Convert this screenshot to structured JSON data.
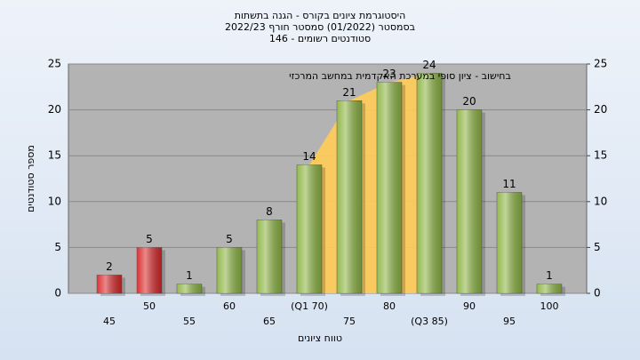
{
  "chart_data": {
    "type": "bar",
    "title": "היסטוגרמת ציונים בקורס - הגנה בתשתות",
    "subtitle": "בסמסטר  (01/2022)  סמסטר חורף  2022/23",
    "subtitle2": "סטודנטים רשומים - 146",
    "annotation": "בחישוב - ציון סופי במערכת האקדמית במחשב המרכזי",
    "x_label": "טווח ציונים",
    "y_label": "מספר סטודנטים",
    "categories": [
      "45",
      "50",
      "55",
      "60",
      "65",
      "(Q1 70)",
      "75",
      "80",
      "(Q3 85)",
      "90",
      "95",
      "100"
    ],
    "values": [
      2,
      5,
      1,
      5,
      8,
      14,
      21,
      23,
      24,
      20,
      11,
      1
    ],
    "colors": [
      "#d8282a",
      "#d8282a",
      "#8db544",
      "#8db544",
      "#8db544",
      "#8db544",
      "#8db544",
      "#8db544",
      "#8db544",
      "#8db544",
      "#8db544",
      "#8db544"
    ],
    "iqr_color": "#ffcc55",
    "ylim": [
      0,
      25
    ],
    "yticks": [
      0,
      5,
      10,
      15,
      20,
      25
    ],
    "y2lim": [
      0,
      25
    ],
    "y2ticks": [
      0,
      5,
      10,
      15,
      20,
      25
    ],
    "grid": true
  }
}
